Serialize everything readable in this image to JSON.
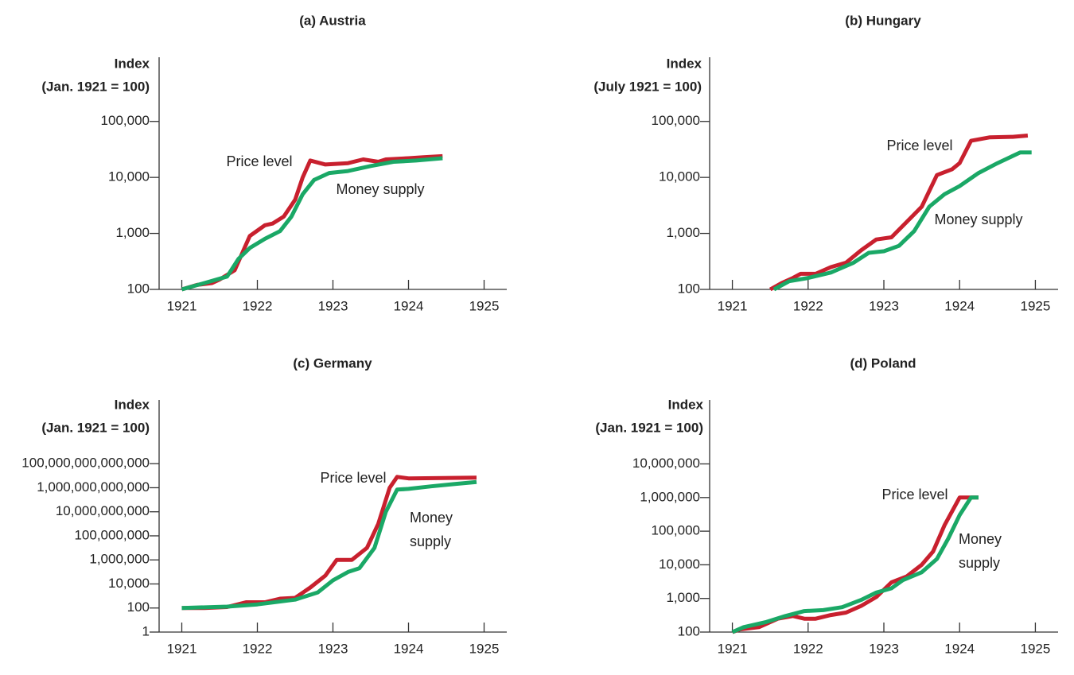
{
  "chart_data": [
    {
      "type": "line",
      "title": "(a) Austria",
      "ylabel": [
        "Index",
        "(Jan. 1921 = 100)"
      ],
      "log_y": true,
      "xlim": [
        1920.7,
        1925.3
      ],
      "xticks": [
        1921,
        1922,
        1923,
        1924,
        1925
      ],
      "ylim": [
        100,
        1400000
      ],
      "yticks": [
        100,
        {
          "value": 1000,
          "label": "1,000"
        },
        {
          "value": 10000,
          "label": "10,000"
        },
        {
          "value": 100000,
          "label": "100,000"
        }
      ],
      "series": [
        {
          "name": "Price level",
          "color": "#c8202e",
          "x": [
            1921.0,
            1921.2,
            1921.4,
            1921.5,
            1921.7,
            1921.9,
            1922.1,
            1922.2,
            1922.35,
            1922.5,
            1922.6,
            1922.7,
            1922.9,
            1923.2,
            1923.4,
            1923.6,
            1923.7,
            1924.0,
            1924.2,
            1924.45
          ],
          "values": [
            100,
            120,
            130,
            150,
            220,
            900,
            1400,
            1500,
            2000,
            4000,
            10000,
            20000,
            17000,
            18000,
            21000,
            19000,
            21000,
            22000,
            23000,
            24000
          ]
        },
        {
          "name": "Money supply",
          "color": "#1aa866",
          "x": [
            1921.0,
            1921.3,
            1921.6,
            1921.75,
            1921.9,
            1922.1,
            1922.3,
            1922.45,
            1922.6,
            1922.75,
            1922.95,
            1923.2,
            1923.5,
            1923.8,
            1924.1,
            1924.45
          ],
          "values": [
            100,
            130,
            170,
            350,
            550,
            800,
            1100,
            2000,
            5000,
            9000,
            12000,
            13000,
            16000,
            19000,
            20000,
            22000
          ]
        }
      ]
    },
    {
      "type": "line",
      "title": "(b) Hungary",
      "ylabel": [
        "Index",
        "(July 1921 = 100)"
      ],
      "log_y": true,
      "xlim": [
        1920.7,
        1925.3
      ],
      "xticks": [
        1921,
        1922,
        1923,
        1924,
        1925
      ],
      "ylim": [
        100,
        1400000
      ],
      "yticks": [
        100,
        {
          "value": 1000,
          "label": "1,000"
        },
        {
          "value": 10000,
          "label": "10,000"
        },
        {
          "value": 100000,
          "label": "100,000"
        }
      ],
      "series": [
        {
          "name": "Price level",
          "color": "#c8202e",
          "x": [
            1921.5,
            1921.65,
            1921.8,
            1921.9,
            1922.1,
            1922.3,
            1922.5,
            1922.7,
            1922.9,
            1923.1,
            1923.3,
            1923.5,
            1923.7,
            1923.9,
            1924.0,
            1924.15,
            1924.4,
            1924.7,
            1924.9
          ],
          "values": [
            100,
            130,
            160,
            190,
            190,
            250,
            300,
            500,
            780,
            850,
            1600,
            3000,
            11000,
            14000,
            18000,
            45000,
            52000,
            53000,
            56000
          ]
        },
        {
          "name": "Money supply",
          "color": "#1aa866",
          "x": [
            1921.55,
            1921.75,
            1922.0,
            1922.3,
            1922.6,
            1922.8,
            1923.0,
            1923.2,
            1923.4,
            1923.6,
            1923.8,
            1924.0,
            1924.25,
            1924.5,
            1924.8,
            1924.95
          ],
          "values": [
            100,
            140,
            160,
            200,
            300,
            450,
            480,
            600,
            1100,
            3000,
            5000,
            7000,
            12000,
            18000,
            28000,
            28000
          ]
        }
      ]
    },
    {
      "type": "line",
      "title": "(c) Germany",
      "ylabel": [
        "Index",
        "(Jan. 1921 = 100)"
      ],
      "log_y": true,
      "xlim": [
        1920.7,
        1925.3
      ],
      "xticks": [
        1921,
        1922,
        1923,
        1924,
        1925
      ],
      "ylim": [
        1,
        20000000000000000000
      ],
      "yticks": [
        1,
        100,
        {
          "value": 10000,
          "label": "10,000"
        },
        {
          "value": 1000000,
          "label": "1,000,000"
        },
        {
          "value": 100000000,
          "label": "100,000,000"
        },
        {
          "value": 10000000000,
          "label": "10,000,000,000"
        },
        {
          "value": 1000000000000,
          "label": "1,000,000,000,000"
        },
        {
          "value": 100000000000000,
          "label": "100,000,000,000,000"
        }
      ],
      "series": [
        {
          "name": "Price level",
          "color": "#c8202e",
          "x": [
            1921.0,
            1921.3,
            1921.6,
            1921.85,
            1922.1,
            1922.3,
            1922.5,
            1922.7,
            1922.9,
            1923.05,
            1923.25,
            1923.45,
            1923.6,
            1923.75,
            1923.85,
            1924.0,
            1924.9
          ],
          "values": [
            100,
            100,
            120,
            300,
            300,
            600,
            700,
            5000,
            50000,
            1000000,
            1000000,
            10000000,
            1000000000,
            1000000000000,
            8000000000000,
            6000000000000,
            7000000000000
          ]
        },
        {
          "name": "Money supply",
          "color": "#1aa866",
          "x": [
            1921.0,
            1921.6,
            1922.0,
            1922.5,
            1922.8,
            1923.0,
            1923.2,
            1923.35,
            1923.55,
            1923.7,
            1923.85,
            1924.0,
            1924.3,
            1924.6,
            1924.9
          ],
          "values": [
            100,
            130,
            200,
            500,
            2000,
            20000,
            100000,
            200000,
            10000000,
            10000000000,
            700000000000,
            800000000000,
            1300000000000,
            2000000000000,
            3000000000000
          ]
        }
      ]
    },
    {
      "type": "line",
      "title": "(d) Poland",
      "ylabel": [
        "Index",
        "(Jan. 1921 = 100)"
      ],
      "log_y": true,
      "xlim": [
        1920.7,
        1925.3
      ],
      "xticks": [
        1921,
        1922,
        1923,
        1924,
        1925
      ],
      "ylim": [
        100,
        800000000
      ],
      "yticks": [
        100,
        {
          "value": 1000,
          "label": "1,000"
        },
        {
          "value": 10000,
          "label": "10,000"
        },
        {
          "value": 100000,
          "label": "100,000"
        },
        {
          "value": 1000000,
          "label": "1,000,000"
        },
        {
          "value": 10000000,
          "label": "10,000,000"
        }
      ],
      "series": [
        {
          "name": "Price level",
          "color": "#c8202e",
          "x": [
            1921.0,
            1921.1,
            1921.35,
            1921.6,
            1921.8,
            1921.95,
            1922.1,
            1922.3,
            1922.5,
            1922.7,
            1922.9,
            1923.1,
            1923.3,
            1923.5,
            1923.65,
            1923.8,
            1924.0,
            1924.25
          ],
          "values": [
            100,
            120,
            140,
            250,
            300,
            250,
            250,
            320,
            380,
            600,
            1100,
            3000,
            4500,
            10000,
            25000,
            150000,
            1000000,
            1000000
          ]
        },
        {
          "name": "Money supply",
          "color": "#1aa866",
          "x": [
            1921.0,
            1921.15,
            1921.45,
            1921.7,
            1921.95,
            1922.2,
            1922.45,
            1922.7,
            1922.9,
            1923.1,
            1923.25,
            1923.5,
            1923.7,
            1923.85,
            1924.0,
            1924.15,
            1924.25
          ],
          "values": [
            100,
            140,
            200,
            300,
            420,
            450,
            550,
            900,
            1500,
            2000,
            3500,
            6000,
            15000,
            60000,
            300000,
            1000000,
            1000000
          ]
        }
      ]
    }
  ]
}
